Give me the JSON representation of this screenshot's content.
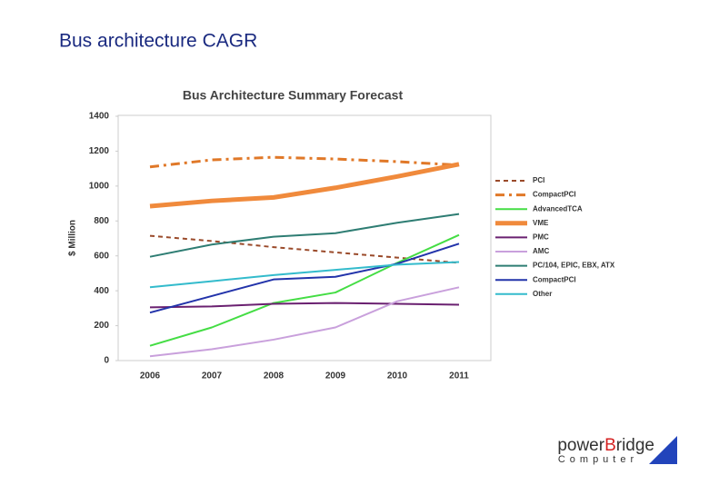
{
  "slide_title": "Bus architecture CAGR",
  "logo": {
    "part1": "power",
    "part2": "B",
    "part3": "ridge",
    "subtitle": "Computer"
  },
  "chart_data": {
    "type": "line",
    "title": "Bus Architecture Summary Forecast",
    "y_label": "$ Million",
    "categories": [
      "2006",
      "2007",
      "2008",
      "2009",
      "2010",
      "2011"
    ],
    "ylim": [
      0,
      1400
    ],
    "yticks": [
      0,
      200,
      400,
      600,
      800,
      1000,
      1200,
      1400
    ],
    "series": [
      {
        "name": "PCI",
        "color": "#9a4a2a",
        "style": "dashed",
        "width": 2,
        "values": [
          715,
          685,
          650,
          620,
          590,
          560
        ]
      },
      {
        "name": "CompactPCI",
        "color": "#e07828",
        "style": "dashdot",
        "width": 3,
        "values": [
          1110,
          1150,
          1165,
          1155,
          1140,
          1120
        ]
      },
      {
        "name": "AdvancedTCA",
        "color": "#44dd44",
        "style": "solid",
        "width": 2,
        "values": [
          85,
          190,
          330,
          390,
          560,
          720
        ]
      },
      {
        "name": "VME",
        "color": "#f08a3c",
        "style": "solid",
        "width": 5,
        "values": [
          885,
          915,
          935,
          990,
          1055,
          1125
        ]
      },
      {
        "name": "PMC",
        "color": "#6a2070",
        "style": "solid",
        "width": 2,
        "values": [
          305,
          310,
          325,
          330,
          325,
          320
        ]
      },
      {
        "name": "AMC",
        "color": "#c9a0dc",
        "style": "solid",
        "width": 2,
        "values": [
          25,
          65,
          120,
          190,
          340,
          420
        ]
      },
      {
        "name": "PC/104, EPIC, EBX, ATX",
        "color": "#2e7d73",
        "style": "solid",
        "width": 2,
        "values": [
          595,
          665,
          710,
          730,
          790,
          840
        ]
      },
      {
        "name": "CompactPCI",
        "color": "#2233aa",
        "style": "solid",
        "width": 2,
        "values": [
          275,
          370,
          465,
          480,
          555,
          670
        ]
      },
      {
        "name": "Other",
        "color": "#33bbcc",
        "style": "solid",
        "width": 2,
        "values": [
          420,
          455,
          490,
          520,
          550,
          565
        ]
      }
    ]
  }
}
